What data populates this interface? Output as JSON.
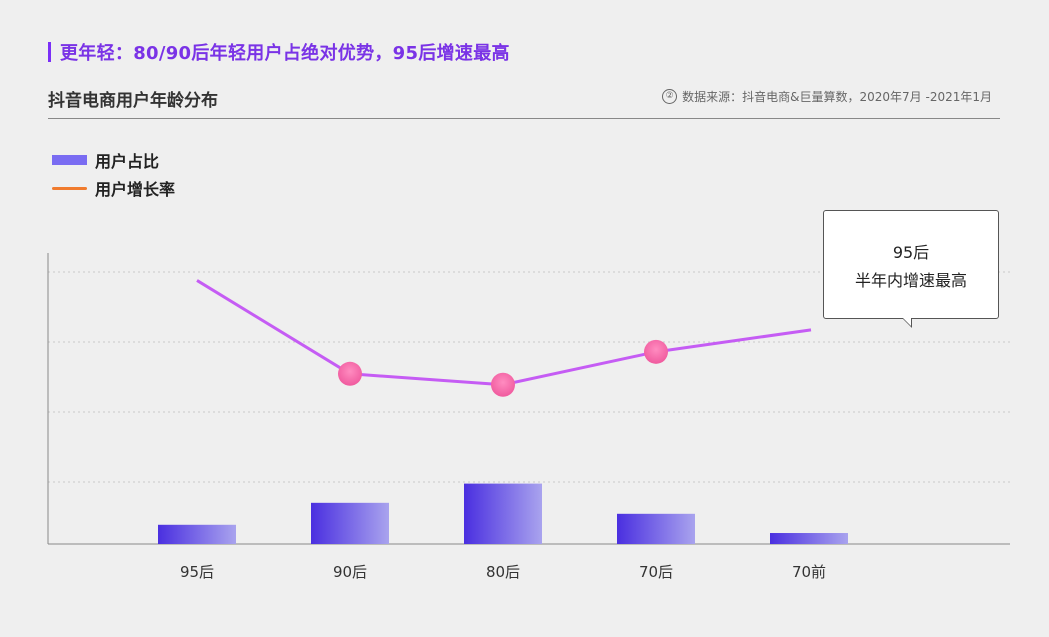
{
  "headline": "更年轻：80/90后年轻用户占绝对优势，95后增速最高",
  "subtitle": "抖音电商用户年龄分布",
  "source_icon": "②",
  "source": "数据来源：抖音电商&巨量算数，2020年7月 -2021年1月",
  "legend": {
    "bar_label": "用户占比",
    "line_label": "用户增长率"
  },
  "callout": {
    "line1": "95后",
    "line2": "半年内增速最高"
  },
  "colors": {
    "headline": "#7a33e6",
    "bar_start": "#4a2fe0",
    "bar_end": "#a9a3ee",
    "line": "#c55cf4",
    "marker": "#f05a9e",
    "legend_line": "#f07b2e"
  },
  "chart_data": {
    "type": "bar+line",
    "categories": [
      "95后",
      "90后",
      "80后",
      "70后",
      "70前"
    ],
    "series": [
      {
        "name": "用户占比",
        "type": "bar",
        "values": [
          7,
          15,
          22,
          11,
          4
        ]
      },
      {
        "name": "用户增长率",
        "type": "line",
        "values": [
          96,
          62,
          58,
          70,
          78
        ],
        "markers": [
          false,
          true,
          true,
          true,
          false
        ]
      }
    ],
    "ylim": [
      0,
      106
    ],
    "grid": true
  }
}
